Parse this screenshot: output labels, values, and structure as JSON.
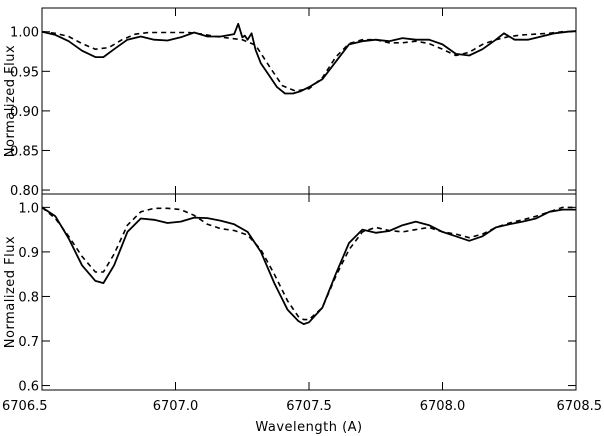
{
  "chart_data": [
    {
      "type": "line",
      "panel": "top",
      "xlabel": "",
      "ylabel": "Normalized Flux",
      "xlim": [
        6706.5,
        6708.5
      ],
      "ylim": [
        0.795,
        1.03
      ],
      "xticks": [
        6706.5,
        6707.0,
        6707.5,
        6708.0,
        6708.5
      ],
      "xticklabels": [
        "",
        "",
        "",
        "",
        ""
      ],
      "yticks": [
        0.8,
        0.85,
        0.9,
        0.95,
        1.0
      ],
      "yticklabels": [
        "0.80",
        "0.85",
        "0.90",
        "0.95",
        "1.00"
      ],
      "grid": false,
      "series": [
        {
          "style": "solid",
          "x": [
            6706.5,
            6706.55,
            6706.6,
            6706.65,
            6706.7,
            6706.73,
            6706.77,
            6706.82,
            6706.87,
            6706.92,
            6706.97,
            6707.02,
            6707.07,
            6707.12,
            6707.17,
            6707.22,
            6707.235,
            6707.25,
            6707.26,
            6707.27,
            6707.285,
            6707.3,
            6707.32,
            6707.35,
            6707.38,
            6707.41,
            6707.44,
            6707.47,
            6707.5,
            6707.55,
            6707.6,
            6707.65,
            6707.7,
            6707.75,
            6707.8,
            6707.85,
            6707.9,
            6707.95,
            6708.0,
            6708.05,
            6708.1,
            6708.15,
            6708.2,
            6708.23,
            6708.27,
            6708.32,
            6708.37,
            6708.42,
            6708.47,
            6708.5
          ],
          "y": [
            1.0,
            0.996,
            0.988,
            0.976,
            0.968,
            0.968,
            0.978,
            0.99,
            0.994,
            0.99,
            0.989,
            0.993,
            0.999,
            0.994,
            0.994,
            0.997,
            1.01,
            0.993,
            0.995,
            0.99,
            0.998,
            0.977,
            0.96,
            0.945,
            0.93,
            0.922,
            0.922,
            0.925,
            0.93,
            0.94,
            0.962,
            0.984,
            0.988,
            0.99,
            0.988,
            0.992,
            0.99,
            0.99,
            0.984,
            0.972,
            0.97,
            0.978,
            0.99,
            0.998,
            0.99,
            0.99,
            0.994,
            0.998,
            1.0,
            1.001
          ]
        },
        {
          "style": "dashed",
          "x": [
            6706.5,
            6706.55,
            6706.6,
            6706.65,
            6706.7,
            6706.75,
            6706.8,
            6706.85,
            6706.9,
            6706.95,
            6707.0,
            6707.05,
            6707.1,
            6707.15,
            6707.2,
            6707.25,
            6707.3,
            6707.35,
            6707.4,
            6707.45,
            6707.5,
            6707.55,
            6707.6,
            6707.65,
            6707.7,
            6707.75,
            6707.8,
            6707.85,
            6707.9,
            6707.95,
            6708.0,
            6708.05,
            6708.1,
            6708.15,
            6708.2,
            6708.25,
            6708.3,
            6708.35,
            6708.4,
            6708.45,
            6708.5
          ],
          "y": [
            1.0,
            0.998,
            0.994,
            0.985,
            0.978,
            0.98,
            0.99,
            0.997,
            0.999,
            0.999,
            0.999,
            0.999,
            0.997,
            0.994,
            0.992,
            0.99,
            0.983,
            0.957,
            0.932,
            0.925,
            0.928,
            0.942,
            0.968,
            0.985,
            0.99,
            0.99,
            0.986,
            0.986,
            0.988,
            0.985,
            0.978,
            0.97,
            0.974,
            0.984,
            0.99,
            0.994,
            0.996,
            0.997,
            0.998,
            1.0,
            1.0
          ]
        }
      ]
    },
    {
      "type": "line",
      "panel": "bottom",
      "xlabel": "Wavelength (A)",
      "ylabel": "Normalized Flux",
      "xlim": [
        6706.5,
        6708.5
      ],
      "ylim": [
        0.59,
        1.03
      ],
      "xticks": [
        6706.5,
        6707.0,
        6707.5,
        6708.0,
        6708.5
      ],
      "xticklabels": [
        "6706.5",
        "6707.0",
        "6707.5",
        "6708.0",
        "6708.5"
      ],
      "yticks": [
        0.6,
        0.7,
        0.8,
        0.9,
        1.0
      ],
      "yticklabels": [
        "0.6",
        "0.7",
        "0.8",
        "0.9",
        "1.0"
      ],
      "grid": false,
      "series": [
        {
          "style": "solid",
          "x": [
            6706.5,
            6706.55,
            6706.6,
            6706.65,
            6706.7,
            6706.73,
            6706.77,
            6706.82,
            6706.87,
            6706.92,
            6706.97,
            6707.02,
            6707.07,
            6707.12,
            6707.17,
            6707.22,
            6707.27,
            6707.32,
            6707.37,
            6707.42,
            6707.46,
            6707.48,
            6707.5,
            6707.55,
            6707.6,
            6707.65,
            6707.7,
            6707.75,
            6707.8,
            6707.85,
            6707.9,
            6707.95,
            6708.0,
            6708.05,
            6708.1,
            6708.15,
            6708.2,
            6708.25,
            6708.3,
            6708.35,
            6708.4,
            6708.45,
            6708.5
          ],
          "y": [
            1.0,
            0.98,
            0.93,
            0.87,
            0.835,
            0.83,
            0.87,
            0.945,
            0.975,
            0.972,
            0.965,
            0.968,
            0.977,
            0.976,
            0.97,
            0.962,
            0.945,
            0.9,
            0.83,
            0.77,
            0.745,
            0.738,
            0.742,
            0.775,
            0.85,
            0.92,
            0.95,
            0.943,
            0.947,
            0.96,
            0.968,
            0.96,
            0.945,
            0.935,
            0.925,
            0.935,
            0.955,
            0.962,
            0.968,
            0.975,
            0.99,
            0.995,
            0.995
          ]
        },
        {
          "style": "dashed",
          "x": [
            6706.5,
            6706.55,
            6706.6,
            6706.65,
            6706.7,
            6706.73,
            6706.77,
            6706.82,
            6706.87,
            6706.92,
            6706.97,
            6707.02,
            6707.07,
            6707.12,
            6707.17,
            6707.22,
            6707.27,
            6707.32,
            6707.37,
            6707.42,
            6707.46,
            6707.48,
            6707.5,
            6707.55,
            6707.6,
            6707.65,
            6707.7,
            6707.75,
            6707.8,
            6707.85,
            6707.9,
            6707.95,
            6708.0,
            6708.05,
            6708.1,
            6708.15,
            6708.2,
            6708.25,
            6708.3,
            6708.35,
            6708.4,
            6708.45,
            6708.5
          ],
          "y": [
            1.0,
            0.975,
            0.935,
            0.89,
            0.855,
            0.855,
            0.895,
            0.96,
            0.99,
            0.998,
            0.998,
            0.995,
            0.982,
            0.962,
            0.952,
            0.948,
            0.938,
            0.905,
            0.85,
            0.79,
            0.755,
            0.748,
            0.748,
            0.775,
            0.845,
            0.905,
            0.945,
            0.955,
            0.948,
            0.945,
            0.95,
            0.955,
            0.945,
            0.94,
            0.932,
            0.94,
            0.955,
            0.965,
            0.972,
            0.98,
            0.99,
            1.0,
            1.0
          ]
        }
      ]
    }
  ]
}
